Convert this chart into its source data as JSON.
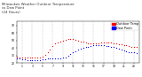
{
  "title": "Milwaukee Weather Outdoor Temperature\nvs Dew Point\n(24 Hours)",
  "title_fontsize": 2.8,
  "background_color": "#ffffff",
  "grid_color": "#888888",
  "xlim": [
    0,
    24
  ],
  "ylim": [
    20,
    75
  ],
  "ytick_vals": [
    20,
    30,
    40,
    50,
    60,
    70
  ],
  "ytick_labels": [
    "20",
    "30",
    "40",
    "50",
    "60",
    "70"
  ],
  "xtick_vals": [
    1,
    3,
    5,
    7,
    9,
    11,
    13,
    15,
    17,
    19,
    21,
    23
  ],
  "xtick_labels": [
    "1",
    "3",
    "5",
    "7",
    "9",
    "11",
    "13",
    "15",
    "17",
    "19",
    "21",
    "23"
  ],
  "temp_color": "#ff0000",
  "dew_color": "#0000ff",
  "legend_temp_label": "Outdoor Temp",
  "legend_dew_label": "Dew Point",
  "temp_x": [
    0.0,
    0.5,
    1.0,
    1.5,
    2.0,
    2.5,
    3.0,
    3.5,
    4.0,
    4.5,
    5.0,
    5.5,
    6.0,
    6.5,
    7.0,
    7.5,
    8.0,
    8.5,
    9.0,
    9.5,
    10.0,
    10.5,
    11.0,
    11.5,
    12.0,
    12.5,
    13.0,
    13.5,
    14.0,
    14.5,
    15.0,
    15.5,
    16.0,
    16.5,
    17.0,
    17.5,
    18.0,
    18.5,
    19.0,
    19.5,
    20.0,
    20.5,
    21.0,
    21.5,
    22.0,
    22.5,
    23.0,
    23.5
  ],
  "temp_y": [
    29,
    28,
    28,
    27,
    27,
    27,
    27,
    27,
    27,
    28,
    29,
    31,
    34,
    38,
    43,
    46,
    47,
    49,
    50,
    51,
    52,
    52,
    52,
    51,
    50,
    49,
    48,
    47,
    46,
    46,
    46,
    46,
    46,
    47,
    47,
    47,
    47,
    47,
    46,
    46,
    45,
    45,
    44,
    44,
    43,
    42,
    42,
    41
  ],
  "dew_x": [
    0.0,
    0.5,
    1.0,
    1.5,
    2.0,
    2.5,
    3.0,
    3.5,
    4.0,
    4.5,
    5.0,
    5.5,
    6.0,
    6.5,
    7.0,
    7.5,
    8.0,
    8.5,
    9.0,
    9.5,
    10.0,
    10.5,
    11.0,
    11.5,
    12.0,
    12.5,
    13.0,
    13.5,
    14.0,
    14.5,
    15.0,
    15.5,
    16.0,
    16.5,
    17.0,
    17.5,
    18.0,
    18.5,
    19.0,
    19.5,
    20.0,
    20.5,
    21.0,
    21.5,
    22.0,
    22.5,
    23.0,
    23.5
  ],
  "dew_y": [
    26,
    26,
    25,
    25,
    24,
    24,
    24,
    24,
    24,
    24,
    25,
    25,
    26,
    26,
    26,
    26,
    26,
    26,
    27,
    28,
    30,
    32,
    34,
    36,
    38,
    39,
    40,
    41,
    42,
    43,
    44,
    44,
    44,
    44,
    44,
    43,
    43,
    42,
    41,
    40,
    39,
    38,
    37,
    36,
    35,
    34,
    34,
    33
  ],
  "marker_size": 0.8,
  "tick_fontsize": 2.2,
  "legend_fontsize": 2.5,
  "fig_width": 1.6,
  "fig_height": 0.87,
  "dpi": 100
}
